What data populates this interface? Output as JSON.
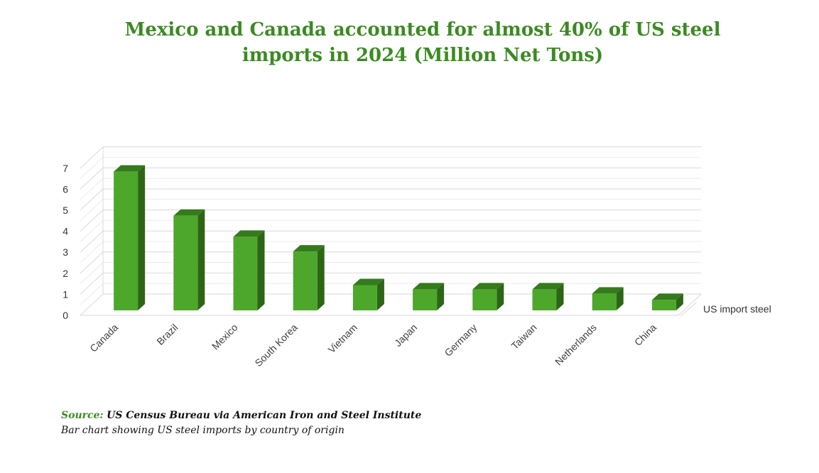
{
  "chart_data": {
    "type": "bar",
    "title_line1": "Mexico and Canada accounted for almost 40% of US steel",
    "title_line2": "imports in 2024 (Million Net Tons)",
    "categories": [
      "Canada",
      "Brazil",
      "Mexico",
      "South Korea",
      "Vietnam",
      "Japan",
      "Germany",
      "Taiwan",
      "Netherlands",
      "China"
    ],
    "series": [
      {
        "name": "US import steel",
        "values": [
          6.6,
          4.5,
          3.5,
          2.8,
          1.2,
          1.0,
          1.0,
          1.0,
          0.8,
          0.5
        ]
      }
    ],
    "ylim": [
      0,
      7
    ],
    "yticks": [
      "0",
      "1",
      "2",
      "3",
      "4",
      "5",
      "6",
      "7"
    ],
    "grid": true,
    "colors": {
      "bar_front": "#4ca72b",
      "bar_top": "#357a1c",
      "bar_side": "#2c6516",
      "title": "#3c8a23"
    }
  },
  "footer": {
    "source_label": "Source:",
    "source_text": "US Census Bureau via American Iron and Steel Institute",
    "caption": "Bar chart showing US steel imports by country of origin"
  }
}
